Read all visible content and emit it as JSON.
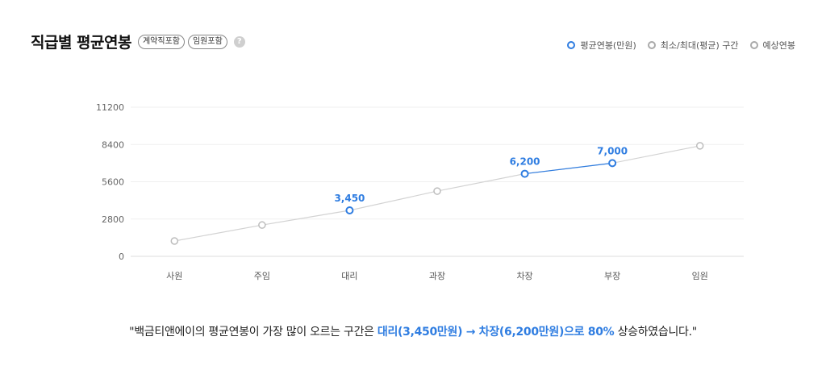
{
  "header": {
    "title": "직급별 평균연봉",
    "badges": [
      "계약직포함",
      "임원포함"
    ],
    "help_icon": "question-icon"
  },
  "legend": {
    "items": [
      {
        "label": "평균연봉(만원)",
        "color": "#2f7de1"
      },
      {
        "label": "최소/최대(평균) 구간",
        "color": "#aaaaaa"
      },
      {
        "label": "예상연봉",
        "color": "#aaaaaa"
      }
    ]
  },
  "chart_data": {
    "type": "line",
    "categories": [
      "사원",
      "주임",
      "대리",
      "과장",
      "차장",
      "부장",
      "임원"
    ],
    "y_ticks": [
      "0",
      "2800",
      "5600",
      "8400",
      "11200"
    ],
    "ylim": [
      0,
      11200
    ],
    "grid": true,
    "legend_position": "top-right",
    "series": [
      {
        "name": "평균연봉(만원)",
        "color": "#2f7de1",
        "values": [
          null,
          null,
          3450,
          null,
          6200,
          7000,
          null
        ],
        "labels": [
          null,
          null,
          "3,450",
          null,
          "6,200",
          "7,000",
          null
        ]
      },
      {
        "name": "예상연봉",
        "color": "#c8c8c8",
        "values": [
          1150,
          2350,
          3450,
          4900,
          6200,
          7000,
          8300
        ]
      }
    ]
  },
  "summary": {
    "prefix": "\"백금티앤에이의 평균연봉이 가장 많이 오르는 구간은 ",
    "highlight": "대리(3,450만원) → 차장(6,200만원)으로 80%",
    "suffix": " 상승하였습니다.\""
  }
}
